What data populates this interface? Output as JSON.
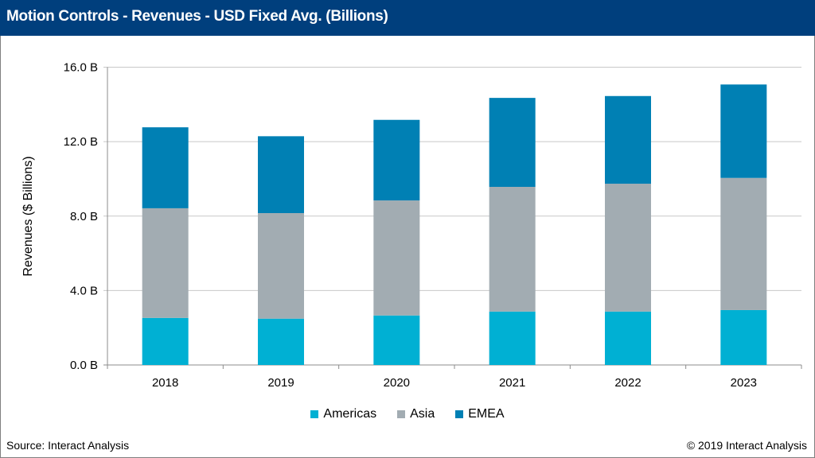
{
  "header": {
    "title": "Motion Controls - Revenues - USD Fixed Avg. (Billions)"
  },
  "footer": {
    "source": "Source: Interact Analysis",
    "copyright": "© 2019 Interact Analysis"
  },
  "chart_data": {
    "type": "bar",
    "stacked": true,
    "title": "Motion Controls - Revenues - USD Fixed Avg. (Billions)",
    "xlabel": "",
    "ylabel": "Revenues ($ Billions)",
    "ylim": [
      0,
      16
    ],
    "yticks": [
      0,
      4,
      8,
      12,
      16
    ],
    "ytick_labels": [
      "0.0 B",
      "4.0 B",
      "8.0 B",
      "12.0 B",
      "16.0 B"
    ],
    "grid": true,
    "legend_position": "bottom",
    "categories": [
      "2018",
      "2019",
      "2020",
      "2021",
      "2022",
      "2023"
    ],
    "series": [
      {
        "name": "Americas",
        "color": "#00b0d3",
        "values": [
          2.53,
          2.49,
          2.66,
          2.87,
          2.87,
          2.95
        ]
      },
      {
        "name": "Asia",
        "color": "#a2acb2",
        "values": [
          5.89,
          5.67,
          6.18,
          6.7,
          6.87,
          7.1
        ]
      },
      {
        "name": "EMEA",
        "color": "#0080b4",
        "values": [
          4.35,
          4.13,
          4.33,
          4.78,
          4.71,
          5.02
        ]
      }
    ]
  }
}
